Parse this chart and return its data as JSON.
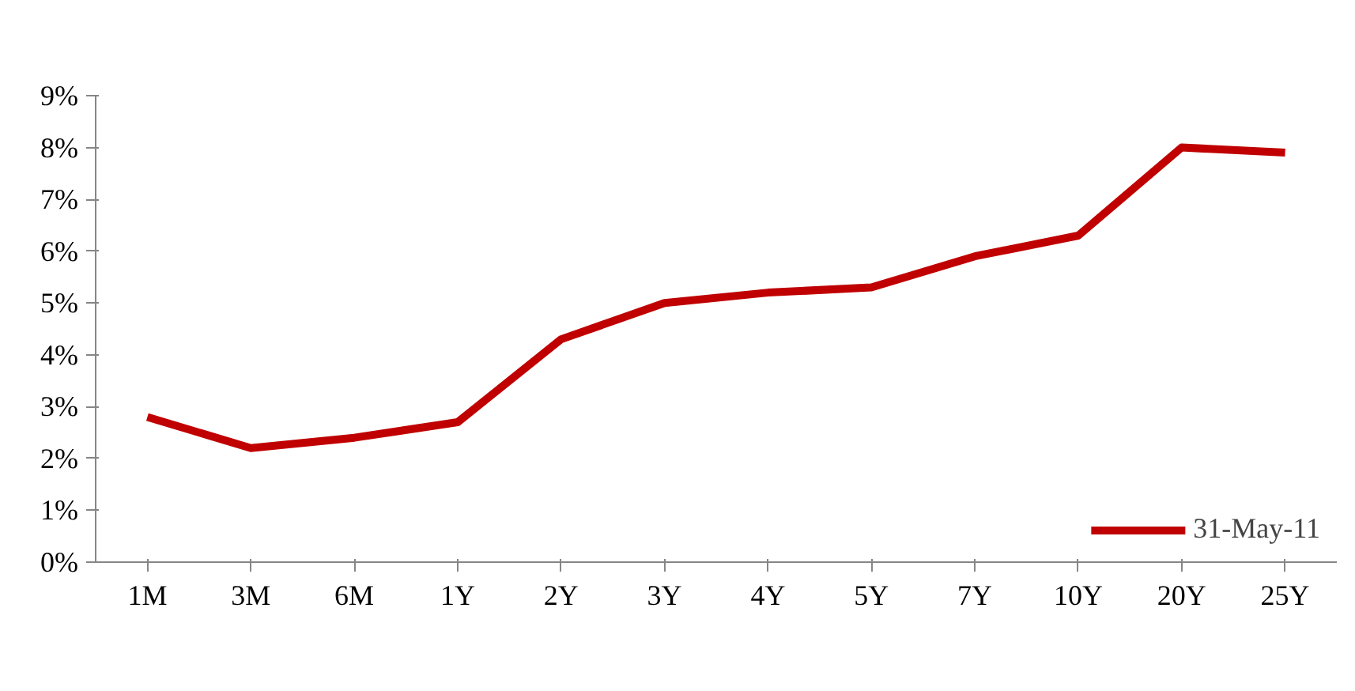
{
  "chart_data": {
    "type": "line",
    "categories": [
      "1M",
      "3M",
      "6M",
      "1Y",
      "2Y",
      "3Y",
      "4Y",
      "5Y",
      "7Y",
      "10Y",
      "20Y",
      "25Y"
    ],
    "series": [
      {
        "name": "31-May-11",
        "color": "#c00000",
        "values": [
          2.8,
          2.2,
          2.4,
          2.7,
          4.3,
          5.0,
          5.2,
          5.3,
          5.9,
          6.3,
          8.0,
          7.9
        ]
      }
    ],
    "ylim": [
      0,
      9
    ],
    "yticks": [
      {
        "value": 0,
        "label": "0%"
      },
      {
        "value": 1,
        "label": "1%"
      },
      {
        "value": 2,
        "label": "2%"
      },
      {
        "value": 3,
        "label": "3%"
      },
      {
        "value": 4,
        "label": "4%"
      },
      {
        "value": 5,
        "label": "5%"
      },
      {
        "value": 6,
        "label": "6%"
      },
      {
        "value": 7,
        "label": "7%"
      },
      {
        "value": 8,
        "label": "8%"
      },
      {
        "value": 9,
        "label": "9%"
      }
    ],
    "grid": false,
    "legend": "bottom right",
    "marker": "none",
    "line_style": "solid"
  }
}
